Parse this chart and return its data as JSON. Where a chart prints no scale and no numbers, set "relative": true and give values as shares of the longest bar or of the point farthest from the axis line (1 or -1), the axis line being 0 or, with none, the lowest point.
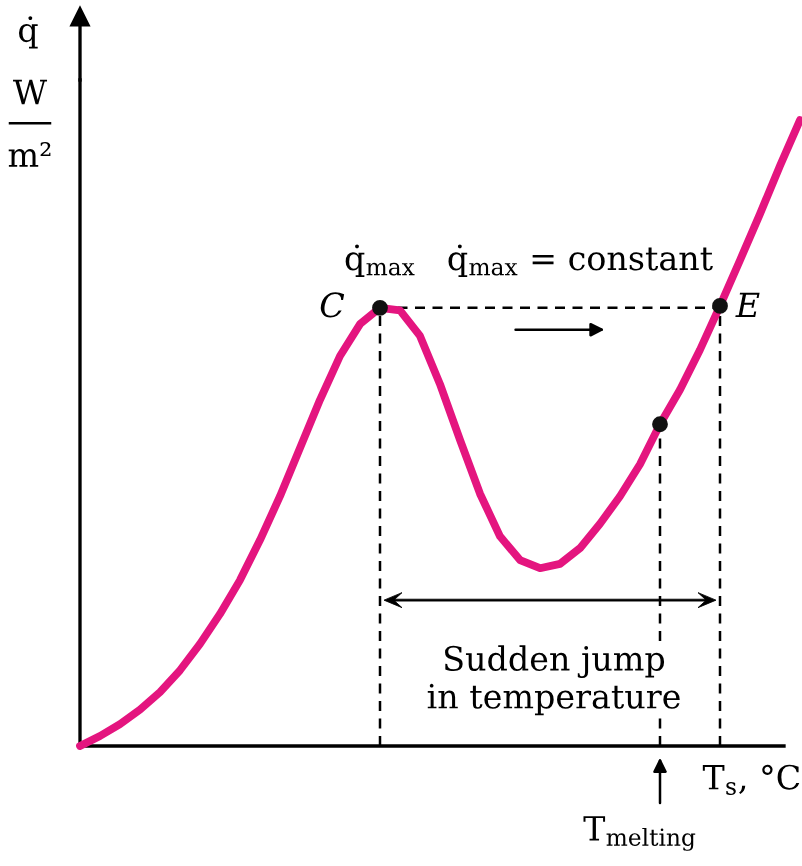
{
  "chart_data": {
    "type": "line",
    "relative": true,
    "categories": [
      null,
      null,
      null,
      null,
      null,
      null,
      null,
      null,
      null,
      null,
      null,
      null,
      null,
      null,
      null,
      null,
      null,
      null,
      null,
      null,
      null,
      null,
      null,
      null,
      null,
      null,
      null,
      null,
      null,
      null,
      null,
      null,
      null,
      null,
      null,
      null,
      null
    ],
    "series": [
      {
        "color": "#e4157f",
        "values": [
          0,
          0.016,
          0.035,
          0.058,
          0.086,
          0.121,
          0.163,
          0.211,
          0.265,
          0.329,
          0.399,
          0.476,
          0.553,
          0.623,
          0.674,
          0.7,
          0.696,
          0.655,
          0.578,
          0.489,
          0.403,
          0.335,
          0.297,
          0.284,
          0.291,
          0.316,
          0.355,
          0.399,
          0.45,
          0.514,
          0.569,
          0.633,
          0.703,
          0.776,
          0.85,
          0.927,
          1
        ]
      }
    ],
    "annotations": [
      "q̇",
      "W",
      "m²",
      "C",
      "E",
      "q̇$_{max}$",
      "q̇$_{max}$ = constant",
      "Sudden jump\nin temperature",
      "T$_{s}$, °C",
      "T$_{melting}$"
    ]
  }
}
